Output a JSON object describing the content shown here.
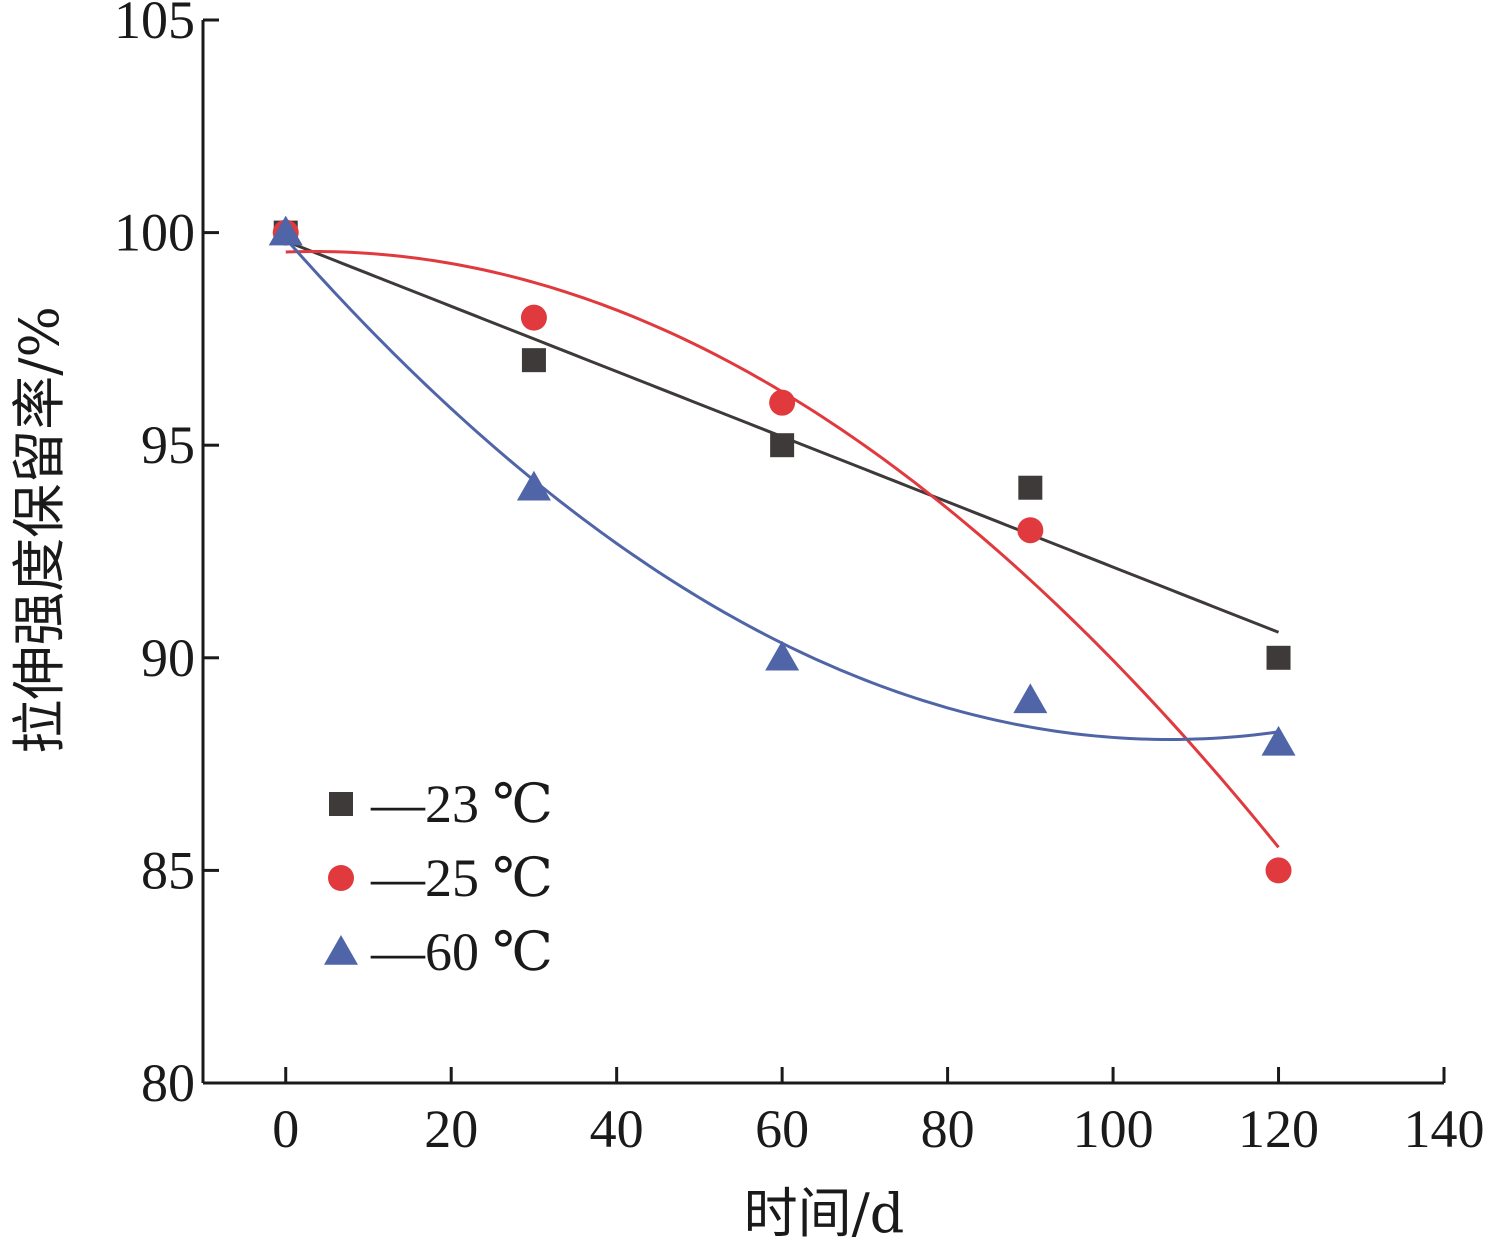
{
  "chart_data": {
    "type": "scatter",
    "title": "",
    "xlabel": "时间/d",
    "ylabel": "拉伸强度保留率/%",
    "xlim": [
      -10,
      140
    ],
    "ylim": [
      80,
      105
    ],
    "xticks": [
      0,
      20,
      40,
      60,
      80,
      100,
      120,
      140
    ],
    "yticks": [
      80,
      85,
      90,
      95,
      100,
      105
    ],
    "grid": false,
    "legend_position": "bottom-left",
    "series": [
      {
        "name": "—23 ℃",
        "marker": "square",
        "color": "#3e3a39",
        "x": [
          0,
          30,
          60,
          90,
          120
        ],
        "y": [
          100,
          97,
          95,
          94,
          90
        ],
        "fit": "linear"
      },
      {
        "name": "—25 ℃",
        "marker": "circle",
        "color": "#e03a3e",
        "x": [
          0,
          30,
          60,
          90,
          120
        ],
        "y": [
          100,
          98,
          96,
          93,
          85
        ],
        "fit": "curve"
      },
      {
        "name": "—60 ℃",
        "marker": "triangle",
        "color": "#4f65a8",
        "x": [
          0,
          30,
          60,
          90,
          120
        ],
        "y": [
          100,
          94,
          90,
          89,
          88
        ],
        "fit": "curve"
      }
    ]
  }
}
